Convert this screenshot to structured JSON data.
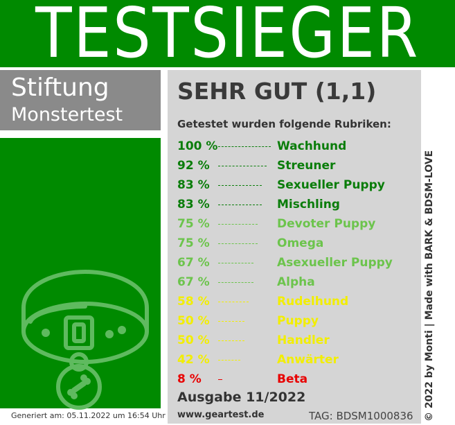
{
  "header": {
    "title": "TESTSIEGER"
  },
  "brand": {
    "line1": "Stiftung",
    "line2": "Monstertest"
  },
  "generated": "Generiert am: 05.11.2022 um 16:54 Uhr",
  "result": {
    "verdict": "SEHR GUT (1,1)",
    "intro": "Getestet wurden folgende Rubriken:",
    "rows": [
      {
        "percent": "100 %",
        "category": "Wachhund",
        "value": 100,
        "color": "#0a7d0a"
      },
      {
        "percent": "92 %",
        "category": "Streuner",
        "value": 92,
        "color": "#0a7d0a"
      },
      {
        "percent": "83 %",
        "category": "Sexueller Puppy",
        "value": 83,
        "color": "#0a7d0a"
      },
      {
        "percent": "83 %",
        "category": "Mischling",
        "value": 83,
        "color": "#0a7d0a"
      },
      {
        "percent": "75 %",
        "category": "Devoter Puppy",
        "value": 75,
        "color": "#6cc44c"
      },
      {
        "percent": "75 %",
        "category": "Omega",
        "value": 75,
        "color": "#6cc44c"
      },
      {
        "percent": "67 %",
        "category": "Asexueller Puppy",
        "value": 67,
        "color": "#6cc44c"
      },
      {
        "percent": "67 %",
        "category": "Alpha",
        "value": 67,
        "color": "#6cc44c"
      },
      {
        "percent": "58 %",
        "category": "Rudelhund",
        "value": 58,
        "color": "#f2ee00"
      },
      {
        "percent": "50 %",
        "category": "Puppy",
        "value": 50,
        "color": "#f2ee00"
      },
      {
        "percent": "50 %",
        "category": "Handler",
        "value": 50,
        "color": "#f2ee00"
      },
      {
        "percent": "42 %",
        "category": "Anwärter",
        "value": 42,
        "color": "#f2ee00"
      },
      {
        "percent": "8 %",
        "category": "Beta",
        "value": 8,
        "color": "#e80000"
      }
    ]
  },
  "footer": {
    "issue": "Ausgabe 11/2022",
    "site": "www.geartest.de",
    "tag": "TAG: BDSM1000836",
    "credit": "© 2022 by Monti | Made with BARK & BDSM-LOVE"
  },
  "colors": {
    "brand_green": "#008a00",
    "panel_grey": "#d5d5d5",
    "brand_grey": "#8a8a8a"
  },
  "icons": {
    "emblem": "dog-collar-icon"
  }
}
